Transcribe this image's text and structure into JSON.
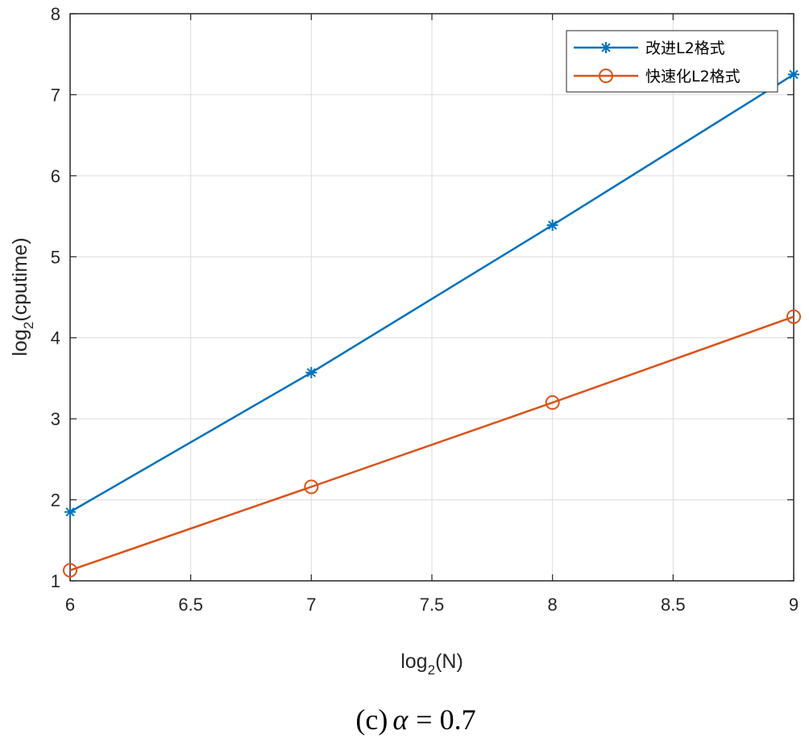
{
  "chart_data": {
    "type": "line",
    "x": [
      6,
      7,
      8,
      9
    ],
    "series": [
      {
        "name": "改进L2格式",
        "values": [
          1.85,
          3.57,
          5.39,
          7.25
        ],
        "color": "#0072BD",
        "marker": "asterisk"
      },
      {
        "name": "快速化L2格式",
        "values": [
          1.13,
          2.16,
          3.2,
          4.26
        ],
        "color": "#D95319",
        "marker": "circle"
      }
    ],
    "xlabel_main": "log",
    "xlabel_sub": "2",
    "xlabel_rest": "(N)",
    "ylabel_main": "log",
    "ylabel_sub": "2",
    "ylabel_rest": "(cputime)",
    "xlim": [
      6,
      9
    ],
    "ylim": [
      1,
      8
    ],
    "xticks": [
      6,
      6.5,
      7,
      7.5,
      8,
      8.5,
      9
    ],
    "xtick_labels": [
      "6",
      "6.5",
      "7",
      "7.5",
      "8",
      "8.5",
      "9"
    ],
    "yticks": [
      1,
      2,
      3,
      4,
      5,
      6,
      7,
      8
    ],
    "ytick_labels": [
      "1",
      "2",
      "3",
      "4",
      "5",
      "6",
      "7",
      "8"
    ],
    "grid": true,
    "legend_position": "top-right",
    "caption_prefix": "(c)",
    "caption_symbol": "α",
    "caption_rest": "= 0.7"
  }
}
